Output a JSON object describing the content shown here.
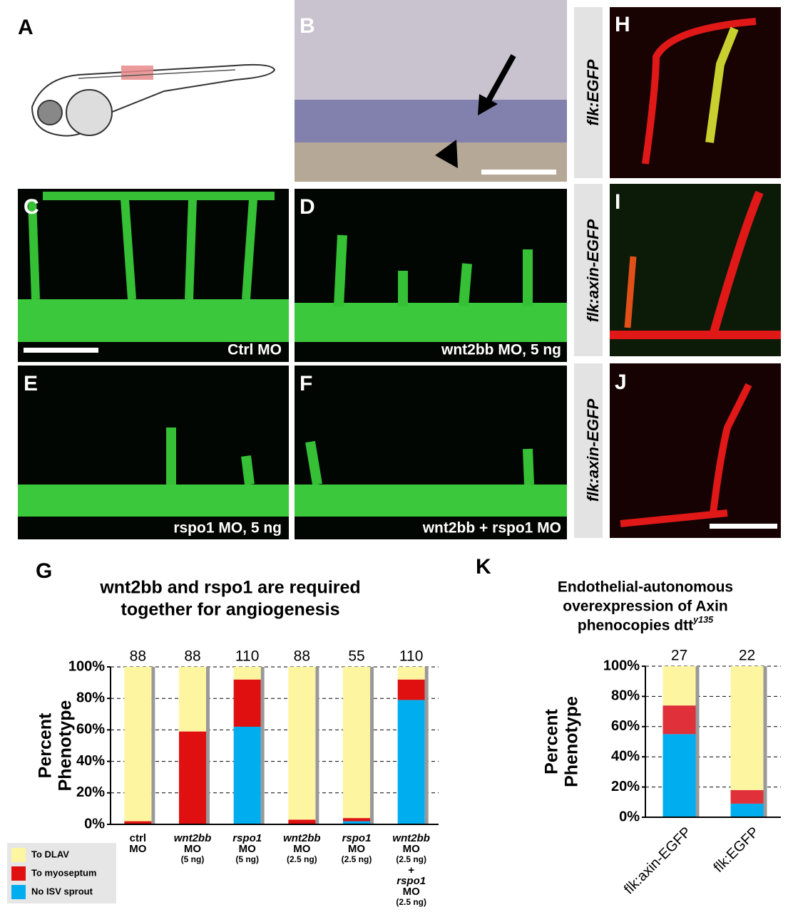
{
  "panels": {
    "A": "A",
    "B": "B",
    "C": "C",
    "D": "D",
    "E": "E",
    "F": "F",
    "G": "G",
    "H": "H",
    "I": "I",
    "J": "J",
    "K": "K",
    "captions": [
      "Ctrl MO",
      "wnt2bb MO, 5 ng",
      "rspo1 MO, 5 ng",
      "wnt2bb + rspo1 MO"
    ],
    "side_labels": [
      "flk:EGFP",
      "flk:axin-EGFP",
      "flk:axin-EGFP"
    ]
  },
  "chart_data": [
    {
      "type": "stacked_bar",
      "title": [
        "wnt2bb and rspo1 are required",
        "together for angiogenesis"
      ],
      "y_label": [
        "Percent",
        "Phenotype"
      ],
      "categories": [
        [
          "ctrl",
          "MO"
        ],
        [
          "wnt2bb",
          "MO",
          "(5 ng)"
        ],
        [
          "rspo1",
          "MO",
          "(5 ng)"
        ],
        [
          "wnt2bb",
          "MO",
          "(2.5 ng)"
        ],
        [
          "rspo1",
          "MO",
          "(2.5 ng)"
        ],
        [
          "wnt2bb",
          "MO",
          "(2.5 ng)",
          "+",
          "rspo1",
          "MO",
          "(2.5 ng)"
        ]
      ],
      "counts": [
        88,
        88,
        110,
        88,
        55,
        110
      ],
      "series": [
        {
          "name": "No ISV sprout",
          "color": "#00aeef",
          "values": [
            0,
            0,
            62,
            0,
            2,
            79
          ]
        },
        {
          "name": "To myoseptum",
          "color": "#e01010",
          "values": [
            2,
            59,
            30,
            3,
            2,
            13
          ]
        },
        {
          "name": "To DLAV",
          "color": "#fdf5a0",
          "values": [
            98,
            41,
            8,
            97,
            96,
            8
          ]
        }
      ],
      "ylim": [
        0,
        100
      ],
      "yticks": [
        {
          "value": 0,
          "label": "0%"
        },
        {
          "value": 20,
          "label": "20%"
        },
        {
          "value": 40,
          "label": "40%"
        },
        {
          "value": 60,
          "label": "60%"
        },
        {
          "value": 80,
          "label": "80%"
        },
        {
          "value": 100,
          "label": "100%"
        }
      ],
      "grid": true,
      "legend": "bottom-left"
    },
    {
      "type": "stacked_bar",
      "title": [
        "Endothelial-autonomous",
        "overexpression of Axin",
        "phenocopies dtt"
      ],
      "title_superscript": "y135",
      "y_label": [
        "Percent",
        "Phenotype"
      ],
      "categories": [
        "flk:axin-EGFP",
        "flk:EGFP"
      ],
      "counts": [
        27,
        22
      ],
      "series": [
        {
          "color": "#00aeef",
          "values": [
            55,
            9
          ]
        },
        {
          "color": "#e0303a",
          "values": [
            19,
            9
          ]
        },
        {
          "color": "#fdf5a0",
          "values": [
            26,
            82
          ]
        }
      ],
      "ylim": [
        0,
        100
      ],
      "yticks": [
        {
          "value": 0,
          "label": "0%"
        },
        {
          "value": 20,
          "label": "20%"
        },
        {
          "value": 40,
          "label": "40%"
        },
        {
          "value": 60,
          "label": "60%"
        },
        {
          "value": 80,
          "label": "80%"
        },
        {
          "value": 100,
          "label": "100%"
        }
      ],
      "grid": true
    }
  ]
}
